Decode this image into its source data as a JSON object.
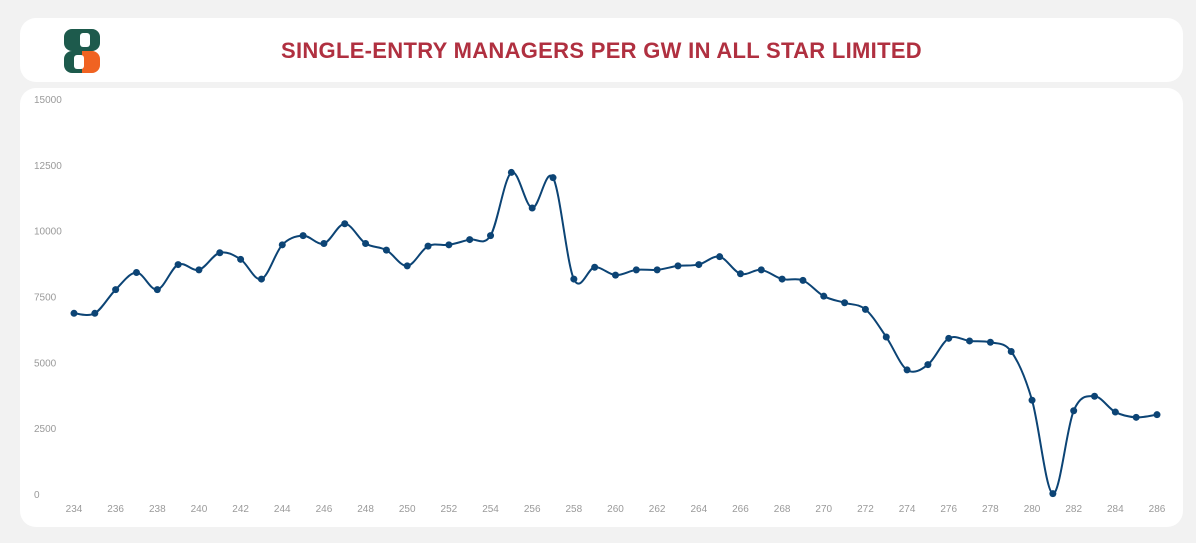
{
  "header": {
    "title": "SINGLE-ENTRY MANAGERS PER GW IN ALL STAR LIMITED",
    "logo_icon": "s-letter-logo-icon"
  },
  "colors": {
    "title": "#b03040",
    "line": "#0c4475",
    "logo_green": "#1d5a4c",
    "logo_orange": "#f06322",
    "tick": "#9a9a9a"
  },
  "chart_data": {
    "type": "line",
    "title": "SINGLE-ENTRY MANAGERS PER GW IN ALL STAR LIMITED",
    "xlabel": "",
    "ylabel": "",
    "x": [
      234,
      235,
      236,
      237,
      238,
      239,
      240,
      241,
      242,
      243,
      244,
      245,
      246,
      247,
      248,
      249,
      250,
      251,
      252,
      253,
      254,
      255,
      256,
      257,
      258,
      259,
      260,
      261,
      262,
      263,
      264,
      265,
      266,
      267,
      268,
      269,
      270,
      271,
      272,
      273,
      274,
      275,
      276,
      277,
      278,
      279,
      280,
      281,
      282,
      283,
      284,
      285,
      286
    ],
    "series": [
      {
        "name": "Single-entry managers",
        "values": [
          6900,
          6900,
          7800,
          8450,
          7800,
          8750,
          8550,
          9200,
          8950,
          8200,
          9500,
          9850,
          9550,
          10300,
          9550,
          9300,
          8700,
          9450,
          9500,
          9700,
          9850,
          12250,
          10900,
          12050,
          8200,
          8650,
          8350,
          8550,
          8550,
          8700,
          8750,
          9050,
          8400,
          8550,
          8200,
          8150,
          7550,
          7300,
          7050,
          6000,
          4750,
          4950,
          5950,
          5850,
          5800,
          5450,
          3600,
          50,
          3200,
          3750,
          3150,
          2950,
          3050
        ]
      }
    ],
    "ylim": [
      0,
      15000
    ],
    "yticks": [
      "0",
      "2500",
      "5000",
      "7500",
      "10000",
      "12500",
      "15000"
    ],
    "xticks": [
      "234",
      "236",
      "238",
      "240",
      "242",
      "244",
      "246",
      "248",
      "250",
      "252",
      "254",
      "256",
      "258",
      "260",
      "262",
      "264",
      "266",
      "268",
      "270",
      "272",
      "274",
      "276",
      "278",
      "280",
      "282",
      "284",
      "286"
    ],
    "grid": false,
    "legend": "none"
  }
}
